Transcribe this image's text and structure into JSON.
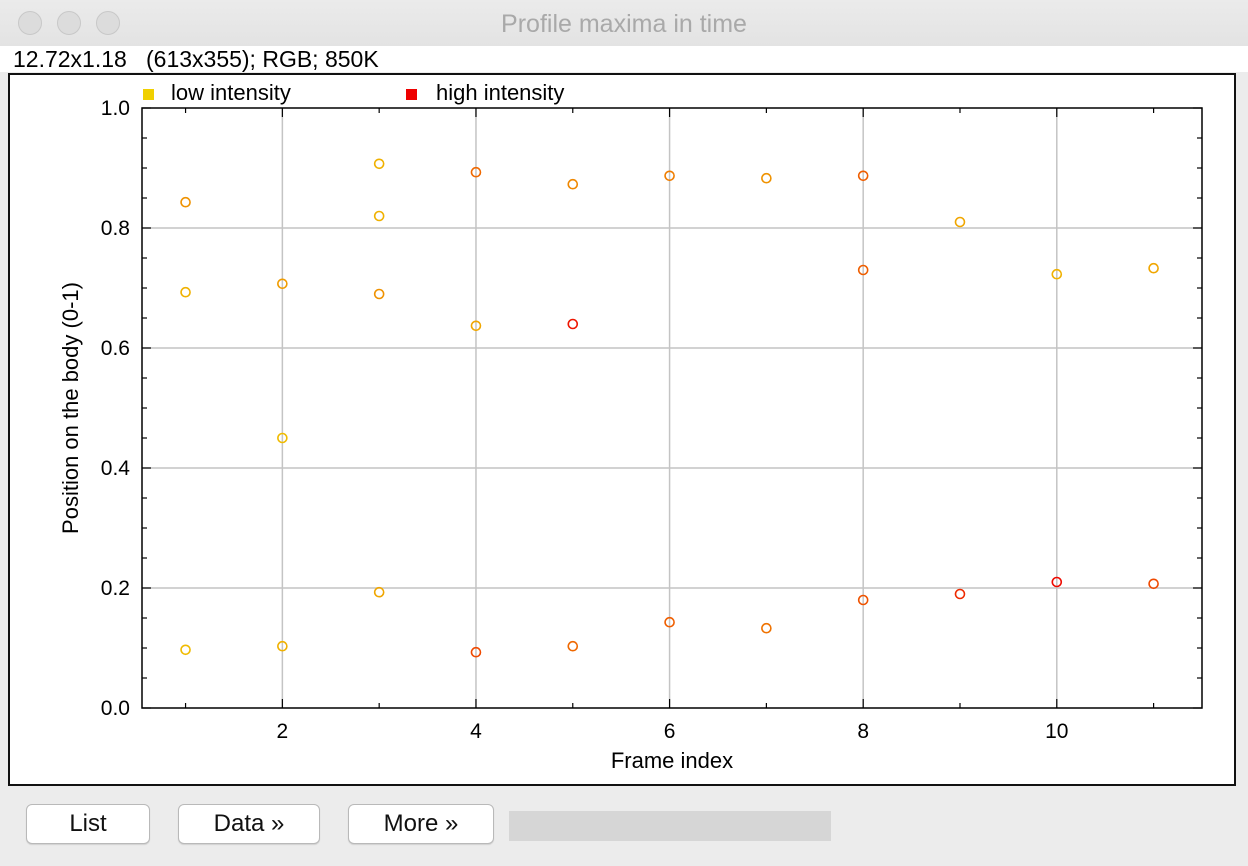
{
  "window": {
    "title": "Profile maxima in time",
    "info": "12.72x1.18   (613x355); RGB; 850K"
  },
  "legend": [
    {
      "label": "low intensity",
      "color": "#f0d000"
    },
    {
      "label": "high intensity",
      "color": "#ee0000"
    }
  ],
  "buttons": {
    "list": "List",
    "data": "Data »",
    "more": "More »"
  },
  "chart_data": {
    "type": "scatter",
    "xlabel": "Frame index",
    "ylabel": "Position on the body (0-1)",
    "xlim": [
      0.55,
      11.5
    ],
    "ylim": [
      0,
      1
    ],
    "x_ticks": [
      2,
      4,
      6,
      8,
      10
    ],
    "y_ticks": [
      0.0,
      0.2,
      0.4,
      0.6,
      0.8,
      1.0
    ],
    "grid": true,
    "legend_position": "top-left",
    "color_scale": {
      "low": "#f0d000",
      "high": "#ee0000"
    },
    "points": [
      {
        "x": 1,
        "y": 0.843,
        "intensity": 0.3
      },
      {
        "x": 1,
        "y": 0.693,
        "intensity": 0.15
      },
      {
        "x": 1,
        "y": 0.097,
        "intensity": 0.1
      },
      {
        "x": 2,
        "y": 0.707,
        "intensity": 0.25
      },
      {
        "x": 2,
        "y": 0.45,
        "intensity": 0.1
      },
      {
        "x": 2,
        "y": 0.103,
        "intensity": 0.15
      },
      {
        "x": 3,
        "y": 0.907,
        "intensity": 0.15
      },
      {
        "x": 3,
        "y": 0.82,
        "intensity": 0.15
      },
      {
        "x": 3,
        "y": 0.69,
        "intensity": 0.3
      },
      {
        "x": 3,
        "y": 0.193,
        "intensity": 0.2
      },
      {
        "x": 4,
        "y": 0.893,
        "intensity": 0.5
      },
      {
        "x": 4,
        "y": 0.637,
        "intensity": 0.2
      },
      {
        "x": 4,
        "y": 0.093,
        "intensity": 0.65
      },
      {
        "x": 5,
        "y": 0.873,
        "intensity": 0.35
      },
      {
        "x": 5,
        "y": 0.64,
        "intensity": 0.9
      },
      {
        "x": 5,
        "y": 0.103,
        "intensity": 0.5
      },
      {
        "x": 6,
        "y": 0.887,
        "intensity": 0.4
      },
      {
        "x": 6,
        "y": 0.143,
        "intensity": 0.55
      },
      {
        "x": 7,
        "y": 0.883,
        "intensity": 0.3
      },
      {
        "x": 7,
        "y": 0.133,
        "intensity": 0.45
      },
      {
        "x": 8,
        "y": 0.887,
        "intensity": 0.55
      },
      {
        "x": 8,
        "y": 0.73,
        "intensity": 0.55
      },
      {
        "x": 8,
        "y": 0.18,
        "intensity": 0.6
      },
      {
        "x": 9,
        "y": 0.81,
        "intensity": 0.2
      },
      {
        "x": 9,
        "y": 0.19,
        "intensity": 0.8
      },
      {
        "x": 10,
        "y": 0.723,
        "intensity": 0.15
      },
      {
        "x": 10,
        "y": 0.21,
        "intensity": 0.95
      },
      {
        "x": 11,
        "y": 0.733,
        "intensity": 0.2
      },
      {
        "x": 11,
        "y": 0.207,
        "intensity": 0.65
      }
    ]
  }
}
